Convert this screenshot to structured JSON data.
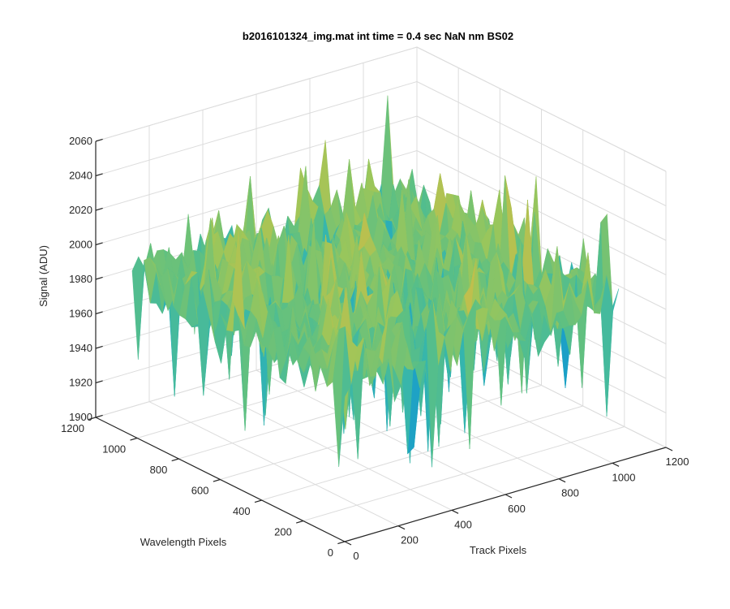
{
  "chart_data": {
    "type": "surface",
    "title": "b2016101324_img.mat int time = 0.4 sec  NaN nm BS02",
    "xlabel": "Track Pixels",
    "ylabel": "Wavelength Pixels",
    "zlabel": "Signal (ADU)",
    "xlim": [
      0,
      1200
    ],
    "ylim": [
      0,
      1200
    ],
    "zlim": [
      1900,
      2060
    ],
    "x_ticks": [
      "0",
      "200",
      "400",
      "600",
      "800",
      "1000",
      "1200"
    ],
    "y_ticks": [
      "0",
      "200",
      "400",
      "600",
      "800",
      "1000",
      "1200"
    ],
    "z_ticks": [
      "1900",
      "1920",
      "1940",
      "1960",
      "1980",
      "2000",
      "2020",
      "2040",
      "2060"
    ],
    "data_extent": {
      "x": [
        0,
        1024
      ],
      "y": [
        0,
        1024
      ]
    },
    "signal_mean": 1995,
    "signal_range": [
      1910,
      2055
    ],
    "grid": true,
    "colormap": [
      "#0072bd",
      "#1a9fc8",
      "#33b5b0",
      "#5ec082",
      "#9cc65a",
      "#d6bb45",
      "#f2b632"
    ]
  }
}
